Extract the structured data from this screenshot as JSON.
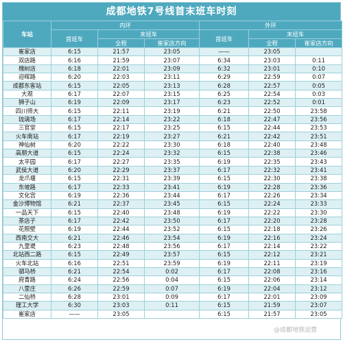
{
  "title": "成都地铁7号线首末班车时刻",
  "header": {
    "station": "车站",
    "inner": "内环",
    "outer": "外环",
    "first": "首班车",
    "last": "末班车",
    "full": "全程",
    "toward": "崔家店方向"
  },
  "rows": [
    [
      "崔家店",
      "6:15",
      "21:57",
      "23:05",
      "——",
      "23:05",
      ""
    ],
    [
      "双店路",
      "6:16",
      "21:59",
      "23:07",
      "6:34",
      "23:03",
      "0:11"
    ],
    [
      "槐树店",
      "6:18",
      "22:01",
      "23:09",
      "6:32",
      "23:01",
      "0:10"
    ],
    [
      "迎晖路",
      "6:20",
      "22:03",
      "23:11",
      "6:29",
      "22:59",
      "0:07"
    ],
    [
      "成都东客站",
      "6:15",
      "22:05",
      "23:13",
      "6:28",
      "22:57",
      "0:05"
    ],
    [
      "大观",
      "6:17",
      "22:07",
      "23:15",
      "6:25",
      "22:54",
      "0:03"
    ],
    [
      "狮子山",
      "6:19",
      "22:09",
      "23:17",
      "6:23",
      "22:52",
      "0:01"
    ],
    [
      "四川师大",
      "6:15",
      "22:11",
      "23:19",
      "6:21",
      "22:50",
      "23:58"
    ],
    [
      "琉璃场",
      "6:17",
      "22:14",
      "23:22",
      "6:18",
      "22:47",
      "23:56"
    ],
    [
      "三官堂",
      "6:15",
      "22:17",
      "23:25",
      "6:15",
      "22:44",
      "23:53"
    ],
    [
      "火车南站",
      "6:17",
      "22:19",
      "23:27",
      "6:21",
      "22:42",
      "23:51"
    ],
    [
      "神仙树",
      "6:20",
      "22:22",
      "23:30",
      "6:18",
      "22:40",
      "23:48"
    ],
    [
      "高朋大道",
      "6:15",
      "22:24",
      "23:32",
      "6:15",
      "22:38",
      "23:46"
    ],
    [
      "太平园",
      "6:17",
      "22:27",
      "23:35",
      "6:19",
      "22:35",
      "23:43"
    ],
    [
      "武侯大道",
      "6:20",
      "22:29",
      "23:37",
      "6:17",
      "22:32",
      "23:41"
    ],
    [
      "龙爪堰",
      "6:15",
      "22:31",
      "23:39",
      "6:15",
      "22:30",
      "23:38"
    ],
    [
      "东坡路",
      "6:17",
      "22:33",
      "23:41",
      "6:19",
      "22:28",
      "23:36"
    ],
    [
      "文化宫",
      "6:19",
      "22:36",
      "23:44",
      "6:17",
      "22:26",
      "23:34"
    ],
    [
      "金沙博物馆",
      "6:21",
      "22:37",
      "23:45",
      "6:15",
      "22:24",
      "23:33"
    ],
    [
      "一品天下",
      "6:15",
      "22:40",
      "23:48",
      "6:19",
      "22:22",
      "23:30"
    ],
    [
      "茶店子",
      "6:17",
      "22:42",
      "23:50",
      "6:17",
      "22:20",
      "23:28"
    ],
    [
      "花照壁",
      "6:19",
      "22:44",
      "23:52",
      "6:15",
      "22:18",
      "23:26"
    ],
    [
      "西南交大",
      "6:21",
      "22:46",
      "23:54",
      "6:19",
      "22:16",
      "23:24"
    ],
    [
      "九里堤",
      "6:23",
      "22:48",
      "23:56",
      "6:17",
      "22:14",
      "23:22"
    ],
    [
      "北站西二路",
      "6:15",
      "22:49",
      "23:57",
      "6:15",
      "22:12",
      "23:21"
    ],
    [
      "火车北站",
      "6:16",
      "22:51",
      "23:59",
      "6:19",
      "22:11",
      "23:19"
    ],
    [
      "驷马桥",
      "6:21",
      "22:54",
      "0:02",
      "6:17",
      "22:08",
      "23:16"
    ],
    [
      "府青路",
      "6:24",
      "22:56",
      "0:04",
      "6:15",
      "22:06",
      "23:14"
    ],
    [
      "八里庄",
      "6:26",
      "22:59",
      "0:07",
      "6:19",
      "22:04",
      "23:12"
    ],
    [
      "二仙桥",
      "6:28",
      "23:01",
      "0:09",
      "6:17",
      "22:01",
      "23:09"
    ],
    [
      "理工大学",
      "6:30",
      "23:03",
      "0:11",
      "6:15",
      "21:59",
      "23:07"
    ],
    [
      "崔家店",
      "——",
      "23:05",
      "",
      "6:15",
      "21:57",
      "23:05"
    ]
  ],
  "watermark": "@成都地铁运营"
}
